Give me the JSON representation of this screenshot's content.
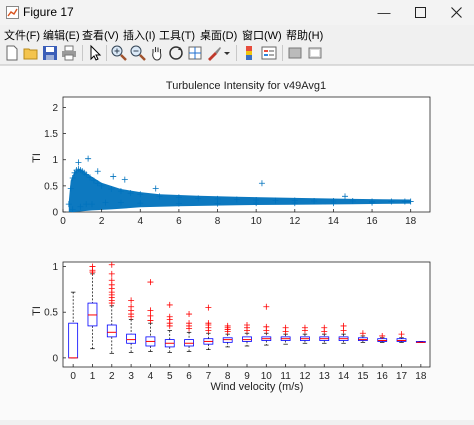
{
  "window": {
    "title": "Figure 17"
  },
  "menu": [
    "文件(F)",
    "编辑(E)",
    "查看(V)",
    "插入(I)",
    "工具(T)",
    "桌面(D)",
    "窗口(W)",
    "帮助(H)"
  ],
  "toolbar_icons": [
    "new-figure-icon",
    "open-file-icon",
    "save-icon",
    "print-icon",
    "pointer-icon",
    "zoom-in-icon",
    "zoom-out-icon",
    "pan-icon",
    "rotate-3d-icon",
    "data-cursor-icon",
    "brush-icon",
    "colorbar-icon",
    "legend-icon",
    "hide-plot-tools-icon",
    "show-plot-tools-icon"
  ],
  "colors": {
    "scatter": "#0072bd",
    "box": "#0000ff",
    "median": "#ff0000",
    "outlier": "#ff0000",
    "whisker": "#000000"
  },
  "chart_data": [
    {
      "type": "scatter",
      "title": "Turbulence Intensity for v49Avg1",
      "xlabel": "",
      "ylabel": "TI",
      "xlim": [
        0,
        19
      ],
      "ylim": [
        0,
        2.2
      ],
      "xticks": [
        0,
        2,
        4,
        6,
        8,
        10,
        12,
        14,
        16,
        18
      ],
      "yticks": [
        0,
        0.5,
        1,
        1.5,
        2
      ],
      "marker": "+",
      "series": [
        {
          "x": [
            0.3,
            0.4,
            0.5,
            0.6,
            0.7,
            0.8,
            0.9,
            1.0,
            1.1,
            1.2,
            1.4,
            1.6,
            1.8,
            2.0,
            2.5,
            3.0,
            3.5,
            4.0,
            5.0,
            6.0,
            7.0,
            8.0,
            9.0,
            10.0,
            11.0,
            12.0,
            13.0,
            14.0,
            15.0,
            16.0,
            17.0,
            18.0,
            0.8,
            1.3,
            1.8,
            2.6,
            3.2,
            4.8,
            10.3,
            14.6,
            17.7,
            0.5,
            0.9,
            1.2,
            1.5,
            2.2,
            3.0,
            4.0,
            6.0,
            8.0,
            10.0,
            12.0,
            14.0,
            16.0
          ],
          "y": [
            0.15,
            0.45,
            0.65,
            0.75,
            0.8,
            0.82,
            0.8,
            0.78,
            0.75,
            0.72,
            0.66,
            0.6,
            0.55,
            0.5,
            0.44,
            0.4,
            0.36,
            0.34,
            0.3,
            0.28,
            0.26,
            0.25,
            0.24,
            0.23,
            0.22,
            0.22,
            0.21,
            0.21,
            0.21,
            0.2,
            0.2,
            0.2,
            0.95,
            1.02,
            0.78,
            0.68,
            0.62,
            0.45,
            0.55,
            0.3,
            0.2,
            0.05,
            0.1,
            0.15,
            0.15,
            0.18,
            0.18,
            0.17,
            0.16,
            0.16,
            0.17,
            0.17,
            0.17,
            0.18
          ]
        }
      ]
    },
    {
      "type": "box",
      "title": "",
      "xlabel": "Wind velocity (m/s)",
      "ylabel": "TI",
      "ylim": [
        -0.1,
        1.05
      ],
      "yticks": [
        0,
        0.5,
        1
      ],
      "categories": [
        "0",
        "1",
        "2",
        "3",
        "4",
        "5",
        "6",
        "7",
        "8",
        "9",
        "10",
        "11",
        "12",
        "13",
        "14",
        "15",
        "16",
        "17",
        "18"
      ],
      "boxes": [
        {
          "q1": 0.0,
          "median": 0.0,
          "q3": 0.38,
          "wlo": 0.0,
          "whi": 0.72,
          "outliers": []
        },
        {
          "q1": 0.35,
          "median": 0.47,
          "q3": 0.6,
          "wlo": 0.1,
          "whi": 0.92,
          "outliers": [
            0.94,
            0.96,
            1.0
          ]
        },
        {
          "q1": 0.23,
          "median": 0.28,
          "q3": 0.36,
          "wlo": 0.05,
          "whi": 0.57,
          "outliers": [
            0.6,
            0.63,
            0.66,
            0.69,
            0.72,
            0.76,
            0.8,
            0.85,
            0.92,
            1.02
          ]
        },
        {
          "q1": 0.16,
          "median": 0.2,
          "q3": 0.26,
          "wlo": 0.06,
          "whi": 0.42,
          "outliers": [
            0.45,
            0.48,
            0.52,
            0.56,
            0.63
          ]
        },
        {
          "q1": 0.13,
          "median": 0.18,
          "q3": 0.23,
          "wlo": 0.07,
          "whi": 0.38,
          "outliers": [
            0.41,
            0.46,
            0.52,
            0.83
          ]
        },
        {
          "q1": 0.12,
          "median": 0.16,
          "q3": 0.2,
          "wlo": 0.06,
          "whi": 0.3,
          "outliers": [
            0.35,
            0.38,
            0.42,
            0.45,
            0.58
          ]
        },
        {
          "q1": 0.13,
          "median": 0.16,
          "q3": 0.2,
          "wlo": 0.07,
          "whi": 0.28,
          "outliers": [
            0.32,
            0.35,
            0.38,
            0.48
          ]
        },
        {
          "q1": 0.15,
          "median": 0.18,
          "q3": 0.21,
          "wlo": 0.09,
          "whi": 0.27,
          "outliers": [
            0.3,
            0.33,
            0.36,
            0.38,
            0.55
          ]
        },
        {
          "q1": 0.17,
          "median": 0.2,
          "q3": 0.22,
          "wlo": 0.12,
          "whi": 0.26,
          "outliers": [
            0.29,
            0.31,
            0.33,
            0.35
          ]
        },
        {
          "q1": 0.18,
          "median": 0.2,
          "q3": 0.23,
          "wlo": 0.13,
          "whi": 0.27,
          "outliers": [
            0.3,
            0.33,
            0.36
          ]
        },
        {
          "q1": 0.19,
          "median": 0.21,
          "q3": 0.23,
          "wlo": 0.14,
          "whi": 0.27,
          "outliers": [
            0.3,
            0.34,
            0.56
          ]
        },
        {
          "q1": 0.19,
          "median": 0.21,
          "q3": 0.23,
          "wlo": 0.15,
          "whi": 0.26,
          "outliers": [
            0.29,
            0.33
          ]
        },
        {
          "q1": 0.19,
          "median": 0.21,
          "q3": 0.23,
          "wlo": 0.16,
          "whi": 0.26,
          "outliers": [
            0.3,
            0.33
          ]
        },
        {
          "q1": 0.19,
          "median": 0.21,
          "q3": 0.23,
          "wlo": 0.16,
          "whi": 0.26,
          "outliers": [
            0.29,
            0.33
          ]
        },
        {
          "q1": 0.19,
          "median": 0.21,
          "q3": 0.23,
          "wlo": 0.16,
          "whi": 0.26,
          "outliers": [
            0.3,
            0.35
          ]
        },
        {
          "q1": 0.19,
          "median": 0.2,
          "q3": 0.22,
          "wlo": 0.17,
          "whi": 0.24,
          "outliers": [
            0.27
          ]
        },
        {
          "q1": 0.18,
          "median": 0.19,
          "q3": 0.21,
          "wlo": 0.17,
          "whi": 0.22,
          "outliers": [
            0.24
          ]
        },
        {
          "q1": 0.18,
          "median": 0.19,
          "q3": 0.21,
          "wlo": 0.17,
          "whi": 0.22,
          "outliers": [
            0.26
          ]
        },
        {
          "q1": 0.17,
          "median": 0.17,
          "q3": 0.18,
          "wlo": 0.17,
          "whi": 0.18,
          "outliers": []
        }
      ]
    }
  ]
}
